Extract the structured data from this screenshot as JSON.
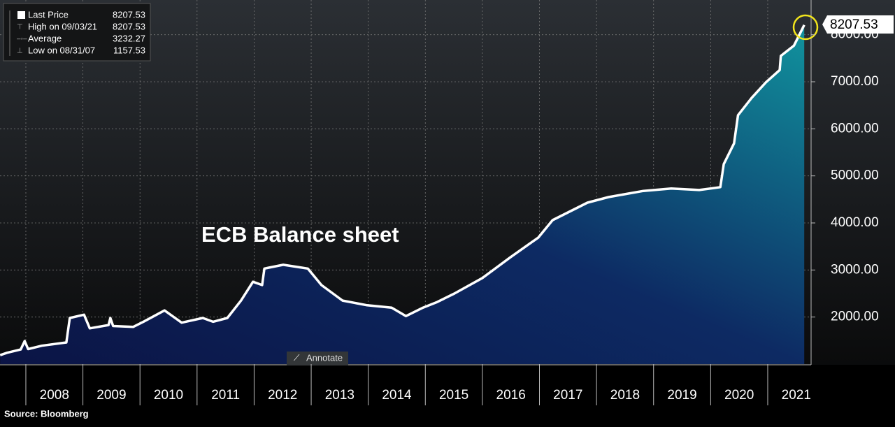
{
  "chart_data": {
    "type": "line",
    "title": "ECB Balance sheet",
    "source": "Source: Bloomberg",
    "x": [
      2007.55,
      2007.67,
      2007.91,
      2007.98,
      2008.04,
      2008.28,
      2008.71,
      2008.77,
      2009.02,
      2009.12,
      2009.45,
      2009.48,
      2009.53,
      2009.88,
      2010.06,
      2010.43,
      2010.73,
      2011.1,
      2011.28,
      2011.53,
      2011.77,
      2011.98,
      2012.14,
      2012.18,
      2012.51,
      2012.94,
      2013.18,
      2013.55,
      2013.98,
      2014.41,
      2014.66,
      2014.96,
      2015.21,
      2015.51,
      2016.0,
      2016.49,
      2016.98,
      2017.23,
      2017.84,
      2018.21,
      2018.82,
      2019.31,
      2019.8,
      2020.17,
      2020.23,
      2020.41,
      2020.48,
      2020.72,
      2020.97,
      2021.21,
      2021.23,
      2021.46,
      2021.64
    ],
    "series": [
      {
        "name": "Last Price",
        "color": "#ffffff",
        "values": [
          1190,
          1240,
          1310,
          1490,
          1320,
          1390,
          1460,
          1980,
          2050,
          1760,
          1830,
          1980,
          1810,
          1790,
          1900,
          2140,
          1880,
          1980,
          1900,
          1980,
          2350,
          2750,
          2680,
          3030,
          3110,
          3030,
          2680,
          2350,
          2250,
          2200,
          2020,
          2200,
          2320,
          2500,
          2830,
          3270,
          3690,
          4060,
          4430,
          4550,
          4680,
          4730,
          4700,
          4760,
          5250,
          5690,
          6290,
          6660,
          6990,
          7250,
          7550,
          7770,
          8207.53
        ]
      }
    ],
    "xlim": [
      2007.547,
      2021.76
    ],
    "xticks": [
      2008,
      2009,
      2010,
      2011,
      2012,
      2013,
      2014,
      2015,
      2016,
      2017,
      2018,
      2019,
      2020,
      2021
    ],
    "ylim": [
      1000,
      8500
    ],
    "yticks": [
      {
        "value": 2000,
        "label": "2000.00"
      },
      {
        "value": 3000,
        "label": "3000.00"
      },
      {
        "value": 4000,
        "label": "4000.00"
      },
      {
        "value": 5000,
        "label": "5000.00"
      },
      {
        "value": 6000,
        "label": "6000.00"
      },
      {
        "value": 7000,
        "label": "7000.00"
      },
      {
        "value": 8000,
        "label": "8000.00"
      }
    ],
    "grid": true,
    "legend_stats": [
      {
        "label": "High on 09/03/21",
        "value": 8207.53
      },
      {
        "label": "Average",
        "value": 3232.27
      },
      {
        "label": "Low on 08/31/07",
        "value": 1157.53
      }
    ]
  },
  "toolbar": {
    "annotate_button": "Annotate"
  }
}
